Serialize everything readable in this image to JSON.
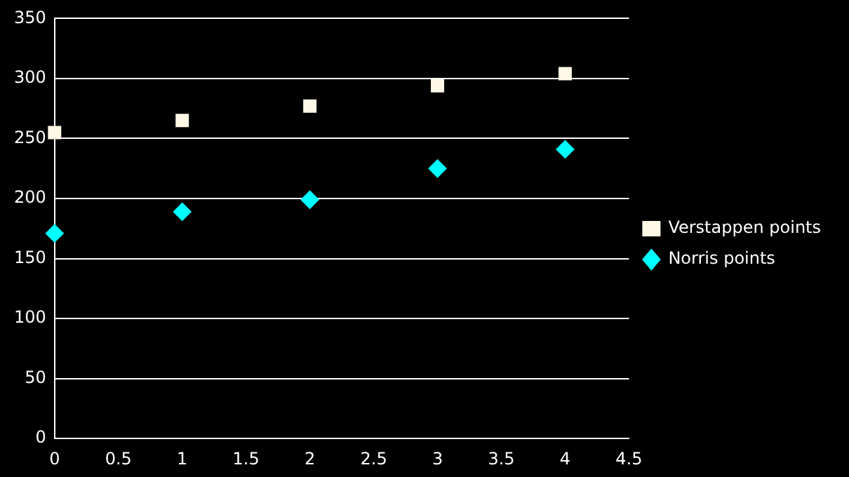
{
  "chart_data": {
    "type": "scatter",
    "xlim": [
      0,
      4.5
    ],
    "xticks": [
      0,
      0.5,
      1,
      1.5,
      2,
      2.5,
      3,
      3.5,
      4,
      4.5
    ],
    "ylim": [
      0,
      350
    ],
    "yticks": [
      0,
      50,
      100,
      150,
      200,
      250,
      300,
      350
    ],
    "grid": "y",
    "legend": "right",
    "series": [
      {
        "name": "Verstappen points",
        "color": "#fff8e6",
        "marker": "square",
        "x": [
          0,
          1,
          2,
          3,
          4
        ],
        "values": [
          255,
          265,
          277,
          294,
          304
        ]
      },
      {
        "name": "Norris points",
        "color": "#00ffff",
        "marker": "diamond",
        "x": [
          0,
          1,
          2,
          3,
          4
        ],
        "values": [
          171,
          189,
          199,
          225,
          241
        ]
      }
    ]
  }
}
